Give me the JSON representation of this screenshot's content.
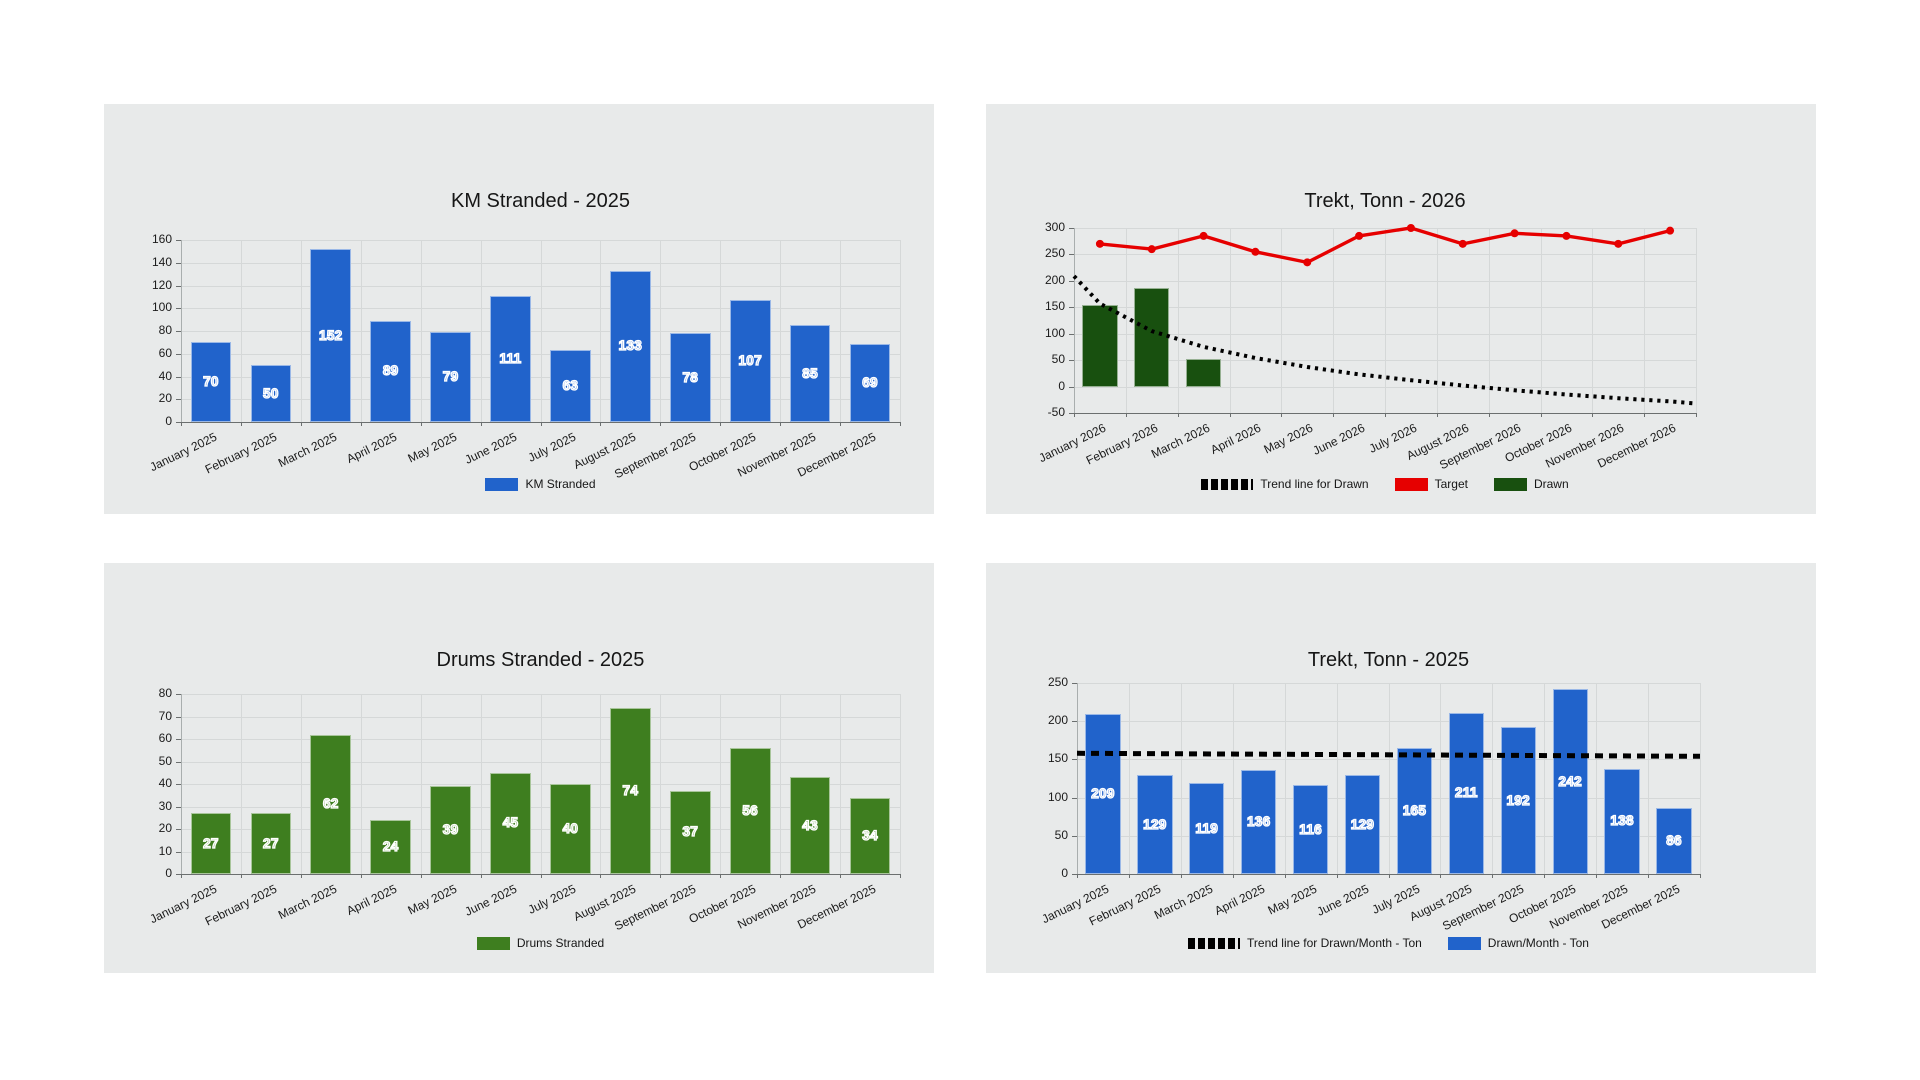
{
  "page": {
    "background": "#ffffff",
    "panel_background": "#e8eaea",
    "grid_color": "#d5d8d8",
    "axis_color": "#6b6f6f",
    "text_color": "#1b1b1b"
  },
  "chart_data": [
    {
      "type": "bar",
      "title": "KM Stranded - 2025",
      "categories": [
        "January 2025",
        "February 2025",
        "March 2025",
        "April 2025",
        "May 2025",
        "June 2025",
        "July 2025",
        "August 2025",
        "September 2025",
        "October 2025",
        "November 2025",
        "December 2025"
      ],
      "series": [
        {
          "name": "KM Stranded",
          "type": "bar",
          "color": "#2163cb",
          "value_labels": true,
          "values": [
            70,
            50,
            152,
            89,
            79,
            111,
            63,
            133,
            78,
            107,
            85,
            69
          ]
        }
      ],
      "y_axis": {
        "min": 0,
        "max": 160,
        "step": 20,
        "ticks": [
          "0",
          "20",
          "40",
          "60",
          "80",
          "100",
          "120",
          "140",
          "160"
        ]
      },
      "grid": true,
      "legend_position": "bottom",
      "legend": [
        {
          "label": "KM Stranded",
          "swatch": "bar",
          "color": "#2163cb"
        }
      ]
    },
    {
      "type": "mixed",
      "title": "Trekt, Tonn - 2026",
      "categories": [
        "January 2026",
        "February 2026",
        "March 2026",
        "April 2026",
        "May 2026",
        "June 2026",
        "July 2026",
        "August 2026",
        "September 2026",
        "October 2026",
        "November 2026",
        "December 2026"
      ],
      "series": [
        {
          "name": "Drawn",
          "type": "bar",
          "color": "#18500f",
          "value_labels": false,
          "values": [
            155,
            187,
            52,
            null,
            null,
            null,
            null,
            null,
            null,
            null,
            null,
            null
          ]
        },
        {
          "name": "Target",
          "type": "line",
          "color": "#e60000",
          "values": [
            270,
            260,
            285,
            255,
            235,
            285,
            300,
            270,
            290,
            285,
            270,
            295
          ]
        },
        {
          "name": "Trend line for Drawn",
          "type": "trend",
          "color": "#000000",
          "dash": "dot",
          "edge_to_edge_values": [
            209,
            157,
            105,
            75,
            54,
            37,
            23,
            12,
            2,
            -7,
            -15,
            -22,
            -28,
            -32
          ]
        }
      ],
      "y_axis": {
        "min": -50,
        "max": 300,
        "step": 50,
        "ticks": [
          "-50",
          "0",
          "50",
          "100",
          "150",
          "200",
          "250",
          "300"
        ]
      },
      "grid": true,
      "legend_position": "bottom",
      "legend": [
        {
          "label": "Trend line for Drawn",
          "swatch": "dotted",
          "color": "#000000"
        },
        {
          "label": "Target",
          "swatch": "bar",
          "color": "#e60000"
        },
        {
          "label": "Drawn",
          "swatch": "bar",
          "color": "#18500f"
        }
      ]
    },
    {
      "type": "bar",
      "title": "Drums Stranded - 2025",
      "categories": [
        "January 2025",
        "February 2025",
        "March 2025",
        "April 2025",
        "May 2025",
        "June 2025",
        "July 2025",
        "August 2025",
        "September 2025",
        "October 2025",
        "November 2025",
        "December 2025"
      ],
      "series": [
        {
          "name": "Drums Stranded",
          "type": "bar",
          "color": "#3e7e1f",
          "value_labels": true,
          "values": [
            27,
            27,
            62,
            24,
            39,
            45,
            40,
            74,
            37,
            56,
            43,
            34
          ]
        }
      ],
      "y_axis": {
        "min": 0,
        "max": 80,
        "step": 10,
        "ticks": [
          "0",
          "10",
          "20",
          "30",
          "40",
          "50",
          "60",
          "70",
          "80"
        ]
      },
      "grid": true,
      "legend_position": "bottom",
      "legend": [
        {
          "label": "Drums Stranded",
          "swatch": "bar",
          "color": "#3e7e1f"
        }
      ]
    },
    {
      "type": "mixed",
      "title": "Trekt, Tonn - 2025",
      "categories": [
        "January 2025",
        "February 2025",
        "March 2025",
        "April 2025",
        "May 2025",
        "June 2025",
        "July 2025",
        "August 2025",
        "September 2025",
        "October 2025",
        "November 2025",
        "December 2025"
      ],
      "series": [
        {
          "name": "Drawn/Month - Ton",
          "type": "bar",
          "color": "#2163cb",
          "value_labels": true,
          "values": [
            209,
            129,
            119,
            136,
            116,
            129,
            165,
            211,
            192,
            242,
            138,
            86
          ]
        },
        {
          "name": "Trend line for Drawn/Month - Ton",
          "type": "trend",
          "color": "#000000",
          "dash": "dash",
          "edge_to_edge_values": [
            158,
            154
          ]
        }
      ],
      "y_axis": {
        "min": 0,
        "max": 250,
        "step": 50,
        "ticks": [
          "0",
          "50",
          "100",
          "150",
          "200",
          "250"
        ]
      },
      "grid": true,
      "legend_position": "bottom",
      "legend": [
        {
          "label": "Trend line for Drawn/Month - Ton",
          "swatch": "dotted",
          "color": "#000000"
        },
        {
          "label": "Drawn/Month - Ton",
          "swatch": "bar",
          "color": "#2163cb"
        }
      ]
    }
  ]
}
